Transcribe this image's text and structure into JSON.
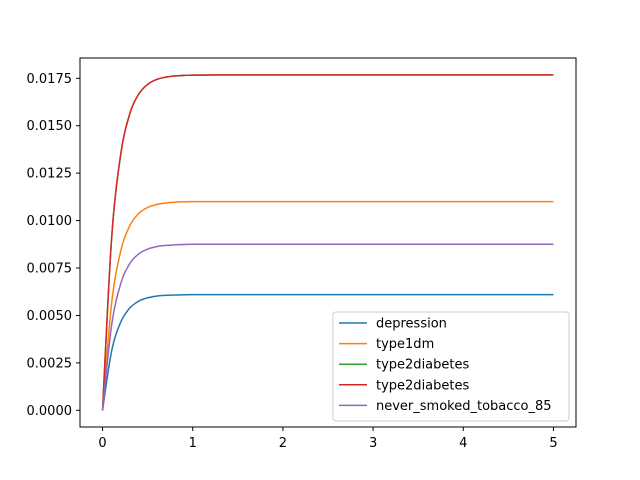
{
  "chart_data": {
    "type": "line",
    "title": "",
    "xlabel": "",
    "ylabel": "",
    "xlim": [
      -0.25,
      5.25
    ],
    "ylim": [
      -0.00088,
      0.01857
    ],
    "x_ticks": [
      0,
      1,
      2,
      3,
      4,
      5
    ],
    "x_tick_labels": [
      "0",
      "1",
      "2",
      "3",
      "4",
      "5"
    ],
    "y_ticks": [
      0,
      0.0025,
      0.005,
      0.0075,
      0.01,
      0.0125,
      0.015,
      0.0175
    ],
    "y_tick_labels": [
      "0.0000",
      "0.0025",
      "0.0050",
      "0.0075",
      "0.0100",
      "0.0125",
      "0.0150",
      "0.0175"
    ],
    "grid": false,
    "legend_position": "lower-right",
    "x": [
      0,
      0.1,
      0.2,
      0.3,
      0.4,
      0.5,
      0.6,
      0.7,
      0.8,
      0.9,
      1,
      1.5,
      2,
      2.5,
      3,
      3.5,
      4,
      4.5,
      5
    ],
    "series": [
      {
        "name": "depression",
        "color": "#1f77b4",
        "values": [
          0,
          0.00311,
          0.00463,
          0.00538,
          0.00575,
          0.00593,
          0.00602,
          0.00606,
          0.00608,
          0.00609,
          0.0061,
          0.0061,
          0.0061,
          0.0061,
          0.0061,
          0.0061,
          0.0061,
          0.0061,
          0.0061
        ]
      },
      {
        "name": "type1dm",
        "color": "#ff7f0e",
        "values": [
          0,
          0.00561,
          0.00836,
          0.00971,
          0.01037,
          0.01069,
          0.01085,
          0.01093,
          0.01097,
          0.01099,
          0.011,
          0.011,
          0.011,
          0.011,
          0.011,
          0.011,
          0.011,
          0.011,
          0.011
        ]
      },
      {
        "name": "type2diabetes",
        "color": "#2ca02c",
        "values": [
          0,
          0.00902,
          0.01344,
          0.0156,
          0.01666,
          0.01718,
          0.01744,
          0.01756,
          0.01762,
          0.01765,
          0.01767,
          0.01768,
          0.01768,
          0.01768,
          0.01768,
          0.01768,
          0.01768,
          0.01768,
          0.01768
        ]
      },
      {
        "name": "type2diabetes",
        "color": "#d62728",
        "values": [
          0,
          0.00902,
          0.01344,
          0.0156,
          0.01666,
          0.01718,
          0.01744,
          0.01756,
          0.01762,
          0.01765,
          0.01767,
          0.01768,
          0.01768,
          0.01768,
          0.01768,
          0.01768,
          0.01768,
          0.01768,
          0.01768
        ]
      },
      {
        "name": "never_smoked_tobacco_85",
        "color": "#9467bd",
        "values": [
          0,
          0.00446,
          0.00665,
          0.00772,
          0.00824,
          0.0085,
          0.00863,
          0.00869,
          0.00872,
          0.00874,
          0.00875,
          0.00875,
          0.00875,
          0.00875,
          0.00875,
          0.00875,
          0.00875,
          0.00875,
          0.00875
        ]
      }
    ]
  }
}
